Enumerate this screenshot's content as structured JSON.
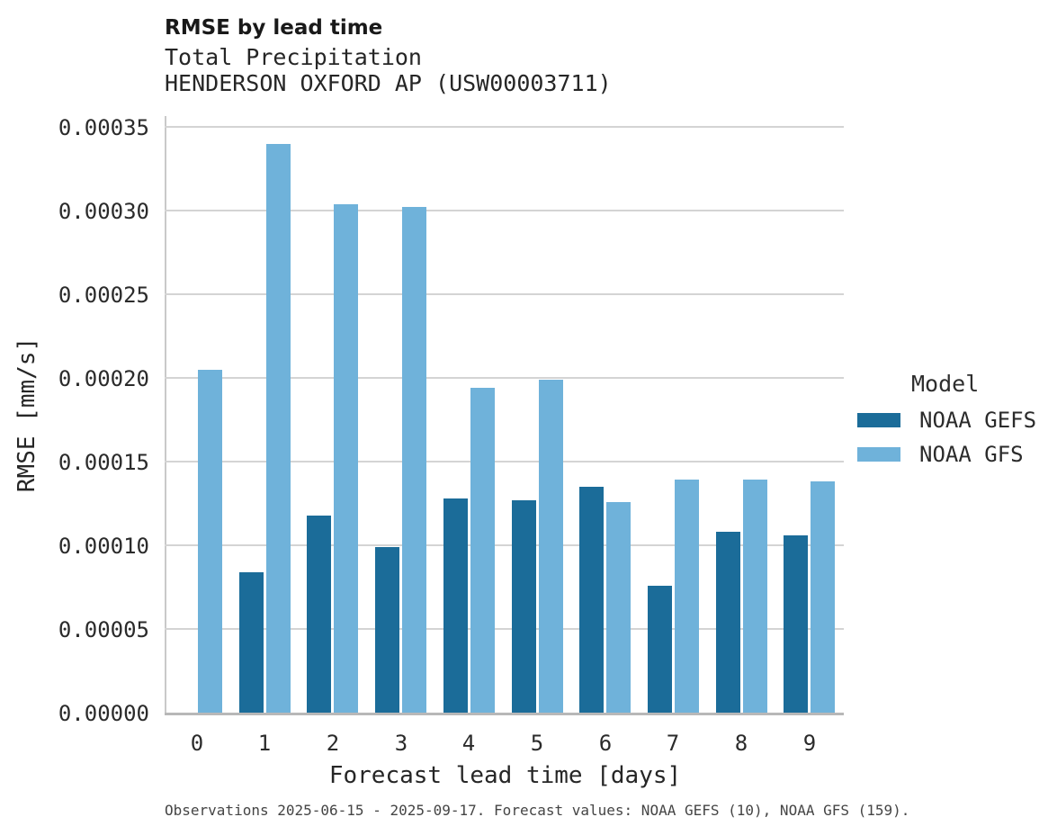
{
  "figure": {
    "title": "RMSE by lead time",
    "subtitle": "Total Precipitation",
    "station": "HENDERSON OXFORD AP (USW00003711)",
    "footer": "Observations 2025-06-15 - 2025-09-17. Forecast values: NOAA GEFS (10), NOAA GFS (159)."
  },
  "chart_data": {
    "type": "bar",
    "grouped": true,
    "title": "RMSE by lead time",
    "subtitle": [
      "Total Precipitation",
      "HENDERSON OXFORD AP (USW00003711)"
    ],
    "xlabel": "Forecast lead time [days]",
    "ylabel": "RMSE [mm/s]",
    "categories": [
      "0",
      "1",
      "2",
      "3",
      "4",
      "5",
      "6",
      "7",
      "8",
      "9"
    ],
    "series": [
      {
        "name": "NOAA GEFS",
        "color": "#1b6c99",
        "values": [
          null,
          8.4e-05,
          0.000118,
          9.9e-05,
          0.000128,
          0.000127,
          0.000135,
          7.6e-05,
          0.000108,
          0.000106
        ]
      },
      {
        "name": "NOAA GFS",
        "color": "#6fb2da",
        "values": [
          0.000205,
          0.00034,
          0.000304,
          0.000302,
          0.000194,
          0.000199,
          0.000126,
          0.000139,
          0.000139,
          0.000138
        ]
      }
    ],
    "ylim": [
      0,
      0.00035
    ],
    "ytick_step": 5e-05,
    "ytick_labels": [
      "0.00000",
      "0.00005",
      "0.00010",
      "0.00015",
      "0.00020",
      "0.00025",
      "0.00030",
      "0.00035"
    ],
    "grid": "horizontal",
    "legend_position": "right"
  },
  "legend": {
    "title": "Model",
    "items": [
      {
        "label": "NOAA GEFS",
        "color": "#1b6c99"
      },
      {
        "label": "NOAA GFS",
        "color": "#6fb2da"
      }
    ]
  }
}
